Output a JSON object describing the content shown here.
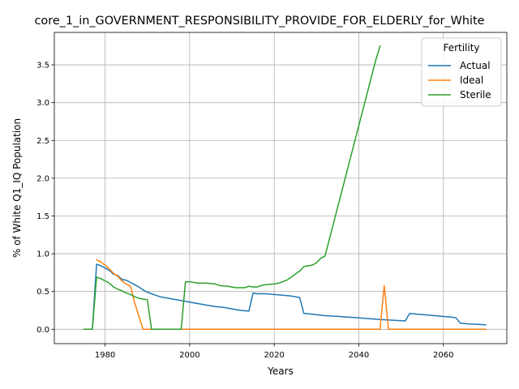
{
  "chart_data": {
    "type": "line",
    "title": "core_1_in_GOVERNMENT_RESPONSIBILITY_PROVIDE_FOR_ELDERLY_for_White",
    "xlabel": "Years",
    "ylabel": "% of White Q1_IQ Population",
    "xlim": [
      1968,
      2075
    ],
    "ylim": [
      -0.19,
      3.93
    ],
    "xticks": [
      1980,
      2000,
      2020,
      2040,
      2060
    ],
    "yticks": [
      "0.0",
      "0.5",
      "1.0",
      "1.5",
      "2.0",
      "2.5",
      "3.0",
      "3.5"
    ],
    "grid": true,
    "legend": {
      "title": "Fertility",
      "placement": "top-right"
    },
    "series": [
      {
        "name": "Actual",
        "color": "#1f77b4",
        "points": [
          [
            1975,
            0.0
          ],
          [
            1977,
            0.0
          ],
          [
            1978,
            0.86
          ],
          [
            1979,
            0.84
          ],
          [
            1980,
            0.81
          ],
          [
            1981,
            0.78
          ],
          [
            1982,
            0.73
          ],
          [
            1983,
            0.71
          ],
          [
            1984,
            0.66
          ],
          [
            1985,
            0.65
          ],
          [
            1986,
            0.62
          ],
          [
            1987,
            0.59
          ],
          [
            1988,
            0.56
          ],
          [
            1989,
            0.52
          ],
          [
            1990,
            0.49
          ],
          [
            1991,
            0.47
          ],
          [
            1992,
            0.45
          ],
          [
            1993,
            0.43
          ],
          [
            1994,
            0.42
          ],
          [
            1996,
            0.4
          ],
          [
            1998,
            0.38
          ],
          [
            2000,
            0.36
          ],
          [
            2002,
            0.34
          ],
          [
            2004,
            0.32
          ],
          [
            2006,
            0.3
          ],
          [
            2008,
            0.29
          ],
          [
            2010,
            0.27
          ],
          [
            2012,
            0.25
          ],
          [
            2014,
            0.24
          ],
          [
            2015,
            0.48
          ],
          [
            2016,
            0.47
          ],
          [
            2018,
            0.47
          ],
          [
            2020,
            0.46
          ],
          [
            2022,
            0.45
          ],
          [
            2024,
            0.44
          ],
          [
            2026,
            0.42
          ],
          [
            2027,
            0.21
          ],
          [
            2029,
            0.2
          ],
          [
            2032,
            0.18
          ],
          [
            2035,
            0.17
          ],
          [
            2040,
            0.15
          ],
          [
            2045,
            0.13
          ],
          [
            2048,
            0.12
          ],
          [
            2051,
            0.11
          ],
          [
            2052,
            0.21
          ],
          [
            2054,
            0.2
          ],
          [
            2058,
            0.18
          ],
          [
            2062,
            0.16
          ],
          [
            2063,
            0.15
          ],
          [
            2064,
            0.08
          ],
          [
            2066,
            0.07
          ],
          [
            2070,
            0.06
          ]
        ]
      },
      {
        "name": "Ideal",
        "color": "#ff7f0e",
        "points": [
          [
            1978,
            0.92
          ],
          [
            1979,
            0.89
          ],
          [
            1980,
            0.85
          ],
          [
            1981,
            0.8
          ],
          [
            1982,
            0.74
          ],
          [
            1983,
            0.7
          ],
          [
            1984,
            0.64
          ],
          [
            1985,
            0.6
          ],
          [
            1986,
            0.57
          ],
          [
            1987,
            0.35
          ],
          [
            1988,
            0.17
          ],
          [
            1989,
            0.0
          ],
          [
            2000,
            0.0
          ],
          [
            2020,
            0.0
          ],
          [
            2040,
            0.0
          ],
          [
            2045,
            0.0
          ],
          [
            2046,
            0.58
          ],
          [
            2047,
            0.0
          ],
          [
            2060,
            0.0
          ],
          [
            2070,
            0.0
          ]
        ]
      },
      {
        "name": "Sterile",
        "color": "#2ca02c",
        "points": [
          [
            1975,
            0.0
          ],
          [
            1977,
            0.0
          ],
          [
            1978,
            0.69
          ],
          [
            1979,
            0.67
          ],
          [
            1980,
            0.64
          ],
          [
            1981,
            0.61
          ],
          [
            1982,
            0.56
          ],
          [
            1983,
            0.53
          ],
          [
            1984,
            0.51
          ],
          [
            1985,
            0.48
          ],
          [
            1986,
            0.46
          ],
          [
            1987,
            0.43
          ],
          [
            1988,
            0.41
          ],
          [
            1989,
            0.4
          ],
          [
            1990,
            0.39
          ],
          [
            1991,
            0.0
          ],
          [
            1995,
            0.0
          ],
          [
            1998,
            0.0
          ],
          [
            1999,
            0.63
          ],
          [
            2000,
            0.63
          ],
          [
            2001,
            0.62
          ],
          [
            2002,
            0.61
          ],
          [
            2004,
            0.61
          ],
          [
            2006,
            0.6
          ],
          [
            2007,
            0.58
          ],
          [
            2009,
            0.57
          ],
          [
            2011,
            0.55
          ],
          [
            2013,
            0.55
          ],
          [
            2014,
            0.57
          ],
          [
            2015,
            0.56
          ],
          [
            2016,
            0.56
          ],
          [
            2017,
            0.58
          ],
          [
            2018,
            0.59
          ],
          [
            2020,
            0.6
          ],
          [
            2021,
            0.61
          ],
          [
            2023,
            0.65
          ],
          [
            2024,
            0.69
          ],
          [
            2026,
            0.77
          ],
          [
            2027,
            0.83
          ],
          [
            2028,
            0.84
          ],
          [
            2029,
            0.85
          ],
          [
            2030,
            0.88
          ],
          [
            2031,
            0.94
          ],
          [
            2032,
            0.97
          ],
          [
            2044,
            3.56
          ],
          [
            2045,
            3.75
          ]
        ]
      }
    ]
  }
}
